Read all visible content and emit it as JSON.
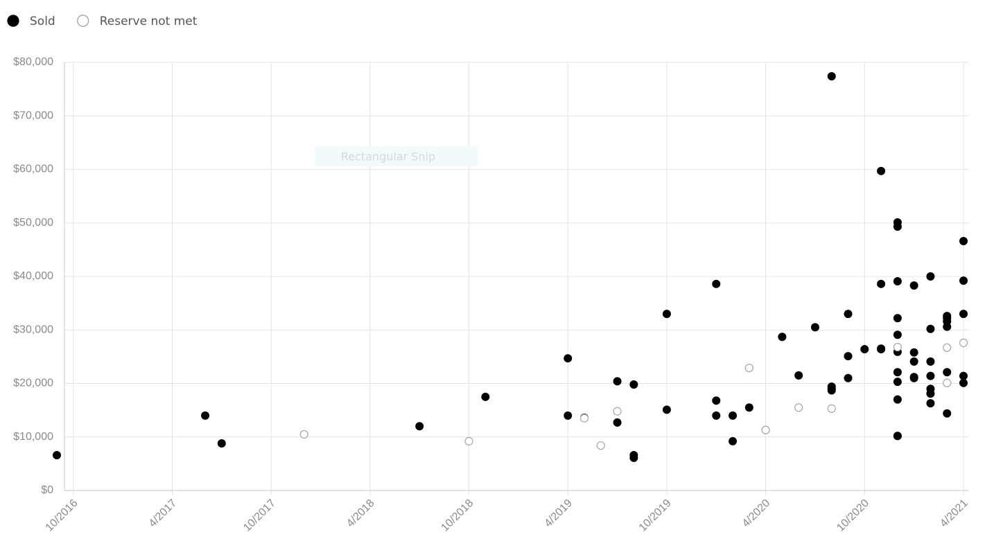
{
  "chart_data": {
    "type": "scatter",
    "snip_label": "Rectangular Snip",
    "xlim": [
      "2016-09",
      "2021-04"
    ],
    "xticks": [
      {
        "value": "2016-10",
        "label": "10/2016"
      },
      {
        "value": "2017-04",
        "label": "4/2017"
      },
      {
        "value": "2017-10",
        "label": "10/2017"
      },
      {
        "value": "2018-04",
        "label": "4/2018"
      },
      {
        "value": "2018-10",
        "label": "10/2018"
      },
      {
        "value": "2019-04",
        "label": "4/2019"
      },
      {
        "value": "2019-10",
        "label": "10/2019"
      },
      {
        "value": "2020-04",
        "label": "4/2020"
      },
      {
        "value": "2020-10",
        "label": "10/2020"
      },
      {
        "value": "2021-04",
        "label": "4/2021"
      }
    ],
    "ylim": [
      0,
      80000
    ],
    "yticks": [
      {
        "value": 0,
        "label": "$0"
      },
      {
        "value": 10000,
        "label": "$10,000"
      },
      {
        "value": 20000,
        "label": "$20,000"
      },
      {
        "value": 30000,
        "label": "$30,000"
      },
      {
        "value": 40000,
        "label": "$40,000"
      },
      {
        "value": 50000,
        "label": "$50,000"
      },
      {
        "value": 60000,
        "label": "$60,000"
      },
      {
        "value": 70000,
        "label": "$70,000"
      },
      {
        "value": 80000,
        "label": "$80,000"
      }
    ],
    "grid": true,
    "legend": "top-left",
    "series": [
      {
        "name": "Sold",
        "color": "#000000",
        "filled": true,
        "x": [
          "2016-09",
          "2017-06",
          "2017-07",
          "2018-07",
          "2018-11",
          "2019-04",
          "2019-04",
          "2019-05",
          "2019-07",
          "2019-07",
          "2019-08",
          "2019-08",
          "2019-08",
          "2019-10",
          "2019-10",
          "2020-01",
          "2020-01",
          "2020-01",
          "2020-02",
          "2020-02",
          "2020-03",
          "2020-05",
          "2020-06",
          "2020-07",
          "2020-08",
          "2020-08",
          "2020-08",
          "2020-08",
          "2020-09",
          "2020-09",
          "2020-09",
          "2020-10",
          "2020-11",
          "2020-11",
          "2020-11",
          "2020-11",
          "2020-12",
          "2020-12",
          "2020-12",
          "2020-12",
          "2020-12",
          "2020-12",
          "2020-12",
          "2020-12",
          "2020-12",
          "2020-12",
          "2021-01",
          "2020-12",
          "2021-01",
          "2021-01",
          "2021-01",
          "2021-01",
          "2021-02",
          "2021-02",
          "2021-02",
          "2021-02",
          "2021-02",
          "2021-02",
          "2021-02",
          "2021-03",
          "2021-03",
          "2021-03",
          "2021-03",
          "2021-03",
          "2021-03",
          "2021-04",
          "2021-04",
          "2021-04",
          "2021-04",
          "2021-04"
        ],
        "values": [
          6600,
          14000,
          8800,
          12000,
          17500,
          14000,
          24700,
          13600,
          12700,
          20400,
          6100,
          6600,
          19800,
          33000,
          15100,
          16800,
          38600,
          14000,
          9200,
          14000,
          15500,
          28700,
          21500,
          30500,
          19000,
          18700,
          19400,
          77400,
          21000,
          25100,
          33000,
          26400,
          26500,
          59700,
          38600,
          26400,
          22100,
          20300,
          49300,
          17000,
          10200,
          10200,
          50100,
          32200,
          29100,
          39100,
          38300,
          25900,
          24100,
          25800,
          21200,
          21000,
          19000,
          30200,
          40000,
          24100,
          21400,
          18100,
          16300,
          32600,
          30600,
          32200,
          31600,
          22100,
          14400,
          21400,
          46600,
          33000,
          20100,
          39200
        ]
      },
      {
        "name": "Reserve not met",
        "color": "#aaaaaa",
        "filled": false,
        "x": [
          "2017-12",
          "2018-10",
          "2019-05",
          "2019-06",
          "2019-07",
          "2020-03",
          "2020-04",
          "2020-06",
          "2020-08",
          "2020-12",
          "2021-03",
          "2021-03",
          "2021-04"
        ],
        "values": [
          10500,
          9200,
          13500,
          8400,
          14800,
          22900,
          11300,
          15500,
          15300,
          26800,
          26700,
          20100,
          27600
        ]
      }
    ]
  }
}
